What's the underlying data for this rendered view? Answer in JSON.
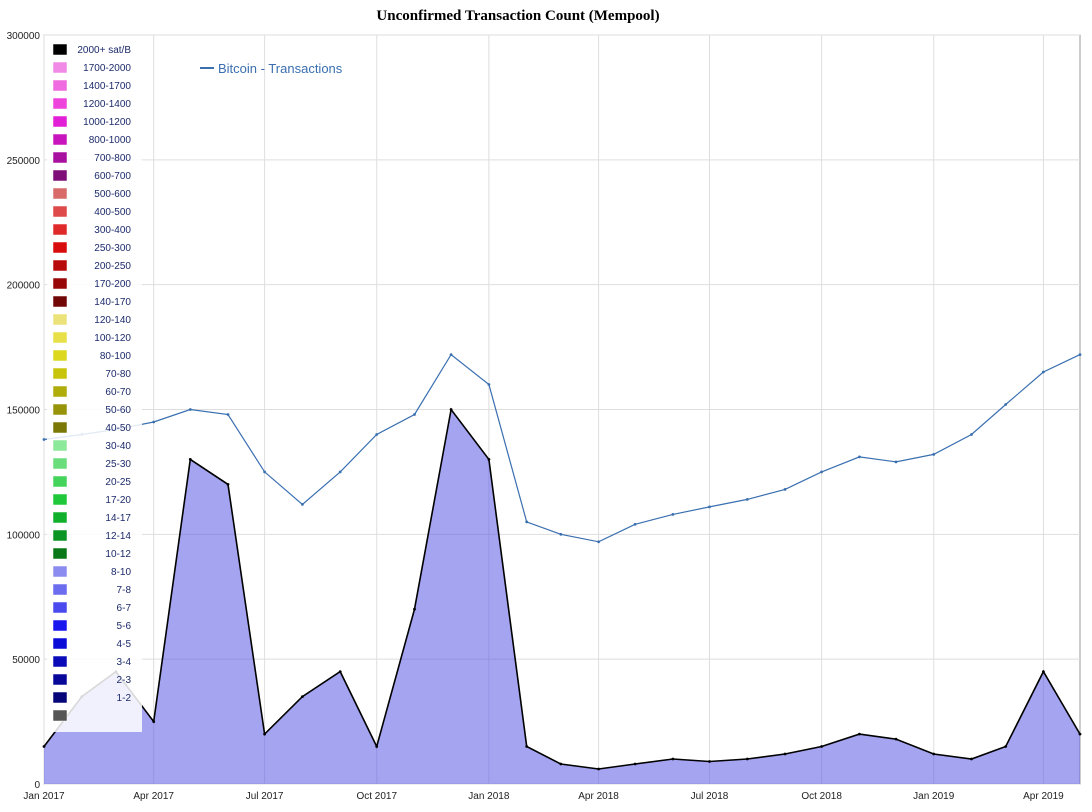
{
  "chart_data": {
    "type": "area",
    "title": "Unconfirmed Transaction Count (Mempool)",
    "xlabel": "",
    "ylabel": "",
    "ylim": [
      0,
      300000
    ],
    "yticks": [
      0,
      50000,
      100000,
      150000,
      200000,
      250000,
      300000
    ],
    "ytick_labels": [
      "0",
      "50000",
      "100000",
      "150000",
      "200000",
      "250000",
      "300000"
    ],
    "xlim": [
      "2017-01-01",
      "2019-05-01"
    ],
    "xticks": [
      {
        "date": "2017-01-01",
        "label": "Jan 2017"
      },
      {
        "date": "2017-04-01",
        "label": "Apr 2017"
      },
      {
        "date": "2017-07-01",
        "label": "Jul 2017"
      },
      {
        "date": "2017-10-01",
        "label": "Oct 2017"
      },
      {
        "date": "2018-01-01",
        "label": "Jan 2018"
      },
      {
        "date": "2018-04-01",
        "label": "Apr 2018"
      },
      {
        "date": "2018-07-01",
        "label": "Jul 2018"
      },
      {
        "date": "2018-10-01",
        "label": "Oct 2018"
      },
      {
        "date": "2019-01-01",
        "label": "Jan 2019"
      },
      {
        "date": "2019-04-01",
        "label": "Apr 2019"
      }
    ],
    "grid": true,
    "legend_position": "top-left",
    "fee_legend": [
      {
        "label": "2000+ sat/B",
        "color": "#000000"
      },
      {
        "label": "1700-2000",
        "color": "#f08ae6"
      },
      {
        "label": "1400-1700",
        "color": "#f06ae0"
      },
      {
        "label": "1200-1400",
        "color": "#ee44dc"
      },
      {
        "label": "1000-1200",
        "color": "#e21ed6"
      },
      {
        "label": "800-1000",
        "color": "#c814bc"
      },
      {
        "label": "700-800",
        "color": "#a810a0"
      },
      {
        "label": "600-700",
        "color": "#7e0e78"
      },
      {
        "label": "500-600",
        "color": "#d86a6a"
      },
      {
        "label": "400-500",
        "color": "#de4a4a"
      },
      {
        "label": "300-400",
        "color": "#e02a2a"
      },
      {
        "label": "250-300",
        "color": "#d80c0c"
      },
      {
        "label": "200-250",
        "color": "#b80a0a"
      },
      {
        "label": "170-200",
        "color": "#980808"
      },
      {
        "label": "140-170",
        "color": "#700606"
      },
      {
        "label": "120-140",
        "color": "#ece27a"
      },
      {
        "label": "100-120",
        "color": "#e8e048"
      },
      {
        "label": "80-100",
        "color": "#dcd820"
      },
      {
        "label": "70-80",
        "color": "#c8c40c"
      },
      {
        "label": "60-70",
        "color": "#b0ac0a"
      },
      {
        "label": "50-60",
        "color": "#98940a"
      },
      {
        "label": "40-50",
        "color": "#7c7808"
      },
      {
        "label": "30-40",
        "color": "#8ce89a"
      },
      {
        "label": "25-30",
        "color": "#6ade7c"
      },
      {
        "label": "20-25",
        "color": "#44d45c"
      },
      {
        "label": "17-20",
        "color": "#1ec83a"
      },
      {
        "label": "14-17",
        "color": "#10b02c"
      },
      {
        "label": "12-14",
        "color": "#0c9424"
      },
      {
        "label": "10-12",
        "color": "#087818"
      },
      {
        "label": "8-10",
        "color": "#8c8cf0"
      },
      {
        "label": "7-8",
        "color": "#6c6cee"
      },
      {
        "label": "6-7",
        "color": "#4a4aee"
      },
      {
        "label": "5-6",
        "color": "#1818ee"
      },
      {
        "label": "4-5",
        "color": "#0c0cd8"
      },
      {
        "label": "3-4",
        "color": "#0a0ab8"
      },
      {
        "label": "2-3",
        "color": "#080898"
      },
      {
        "label": "1-2",
        "color": "#060678"
      },
      {
        "label": "",
        "color": "#555555"
      }
    ],
    "series": [
      {
        "name": "Bitcoin - Transactions",
        "color": "#3a6fb0",
        "x": [
          "2017-01-01",
          "2017-02-01",
          "2017-03-01",
          "2017-04-01",
          "2017-05-01",
          "2017-06-01",
          "2017-07-01",
          "2017-08-01",
          "2017-09-01",
          "2017-10-01",
          "2017-11-01",
          "2017-12-01",
          "2018-01-01",
          "2018-02-01",
          "2018-03-01",
          "2018-04-01",
          "2018-05-01",
          "2018-06-01",
          "2018-07-01",
          "2018-08-01",
          "2018-09-01",
          "2018-10-01",
          "2018-11-01",
          "2018-12-01",
          "2019-01-01",
          "2019-02-01",
          "2019-03-01",
          "2019-04-01",
          "2019-05-01"
        ],
        "values": [
          138000,
          140000,
          142000,
          145000,
          150000,
          148000,
          125000,
          112000,
          125000,
          140000,
          148000,
          172000,
          160000,
          105000,
          100000,
          97000,
          104000,
          108000,
          111000,
          114000,
          118000,
          125000,
          131000,
          129000,
          132000,
          140000,
          152000,
          165000,
          172000
        ]
      },
      {
        "name": "",
        "color": "#000000",
        "x": [
          "2017-01-01",
          "2017-02-01",
          "2017-03-01",
          "2017-04-01",
          "2017-05-01",
          "2017-06-01",
          "2017-07-01",
          "2017-08-01",
          "2017-09-01",
          "2017-10-01",
          "2017-11-01",
          "2017-12-01",
          "2018-01-01",
          "2018-02-01",
          "2018-03-01",
          "2018-04-01",
          "2018-05-01",
          "2018-06-01",
          "2018-07-01",
          "2018-08-01",
          "2018-09-01",
          "2018-10-01",
          "2018-11-01",
          "2018-12-01",
          "2019-01-01",
          "2019-02-01",
          "2019-03-01",
          "2019-04-01",
          "2019-05-01"
        ],
        "values": [
          15000,
          35000,
          45000,
          25000,
          130000,
          120000,
          20000,
          35000,
          45000,
          15000,
          70000,
          150000,
          130000,
          15000,
          8000,
          6000,
          8000,
          10000,
          9000,
          10000,
          12000,
          15000,
          20000,
          18000,
          12000,
          10000,
          15000,
          45000,
          20000
        ]
      }
    ]
  }
}
